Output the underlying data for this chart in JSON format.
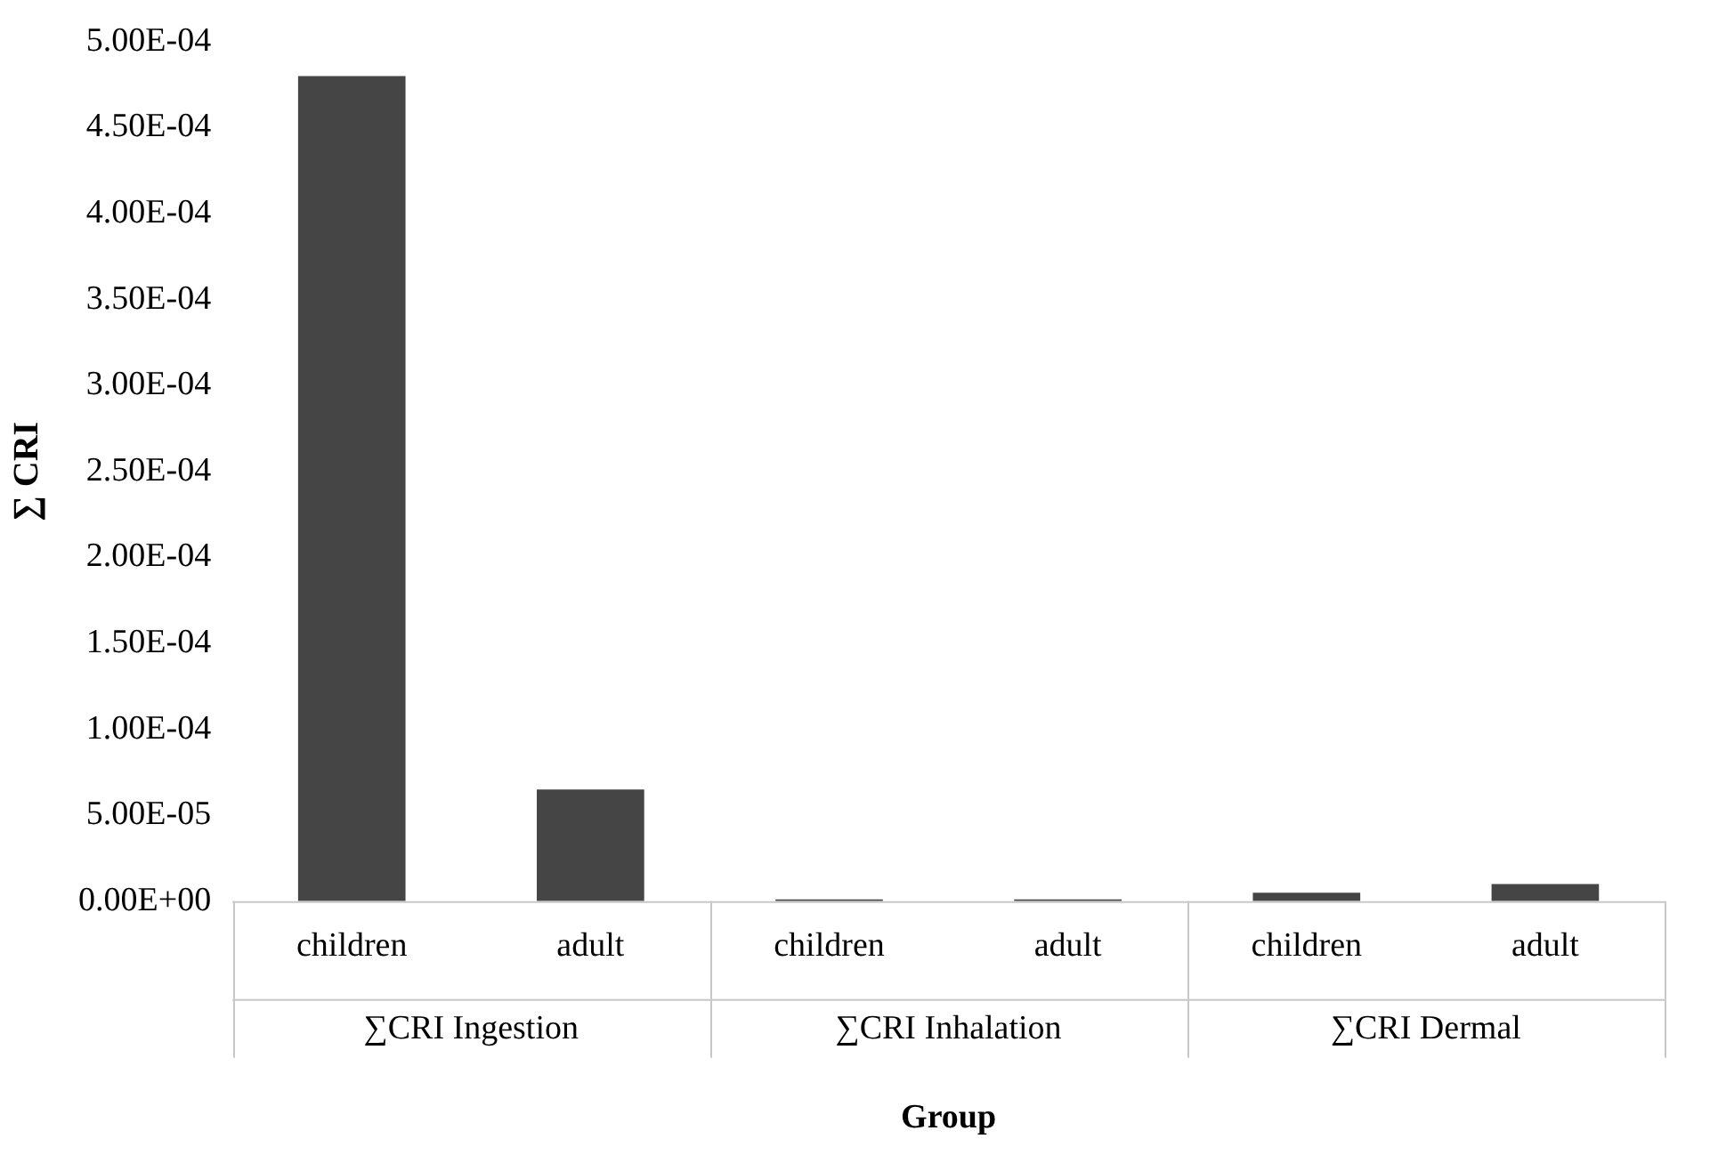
{
  "chart_data": {
    "type": "bar",
    "xlabel": "Group",
    "ylabel": "∑ CRI",
    "categories": [
      "children",
      "adult",
      "children",
      "adult",
      "children",
      "adult"
    ],
    "values": [
      0.00048,
      6.5e-05,
      1e-06,
      1e-06,
      5e-06,
      1e-05
    ],
    "color": "#454545",
    "annotations": [
      "∑CRI Ingestion",
      "∑CRI Inhalation",
      "∑CRI Dermal"
    ],
    "ylim": [
      0,
      0.0005
    ],
    "yticks": [
      {
        "value": 0,
        "label": "0.00E+00"
      },
      {
        "value": 5e-05,
        "label": "5.00E-05"
      },
      {
        "value": 0.0001,
        "label": "1.00E-04"
      },
      {
        "value": 0.00015,
        "label": "1.50E-04"
      },
      {
        "value": 0.0002,
        "label": "2.00E-04"
      },
      {
        "value": 0.00025,
        "label": "2.50E-04"
      },
      {
        "value": 0.0003,
        "label": "3.00E-04"
      },
      {
        "value": 0.00035,
        "label": "3.50E-04"
      },
      {
        "value": 0.0004,
        "label": "4.00E-04"
      },
      {
        "value": 0.00045,
        "label": "4.50E-04"
      },
      {
        "value": 0.0005,
        "label": "5.00E-04"
      }
    ],
    "grid": false,
    "legend": false
  }
}
